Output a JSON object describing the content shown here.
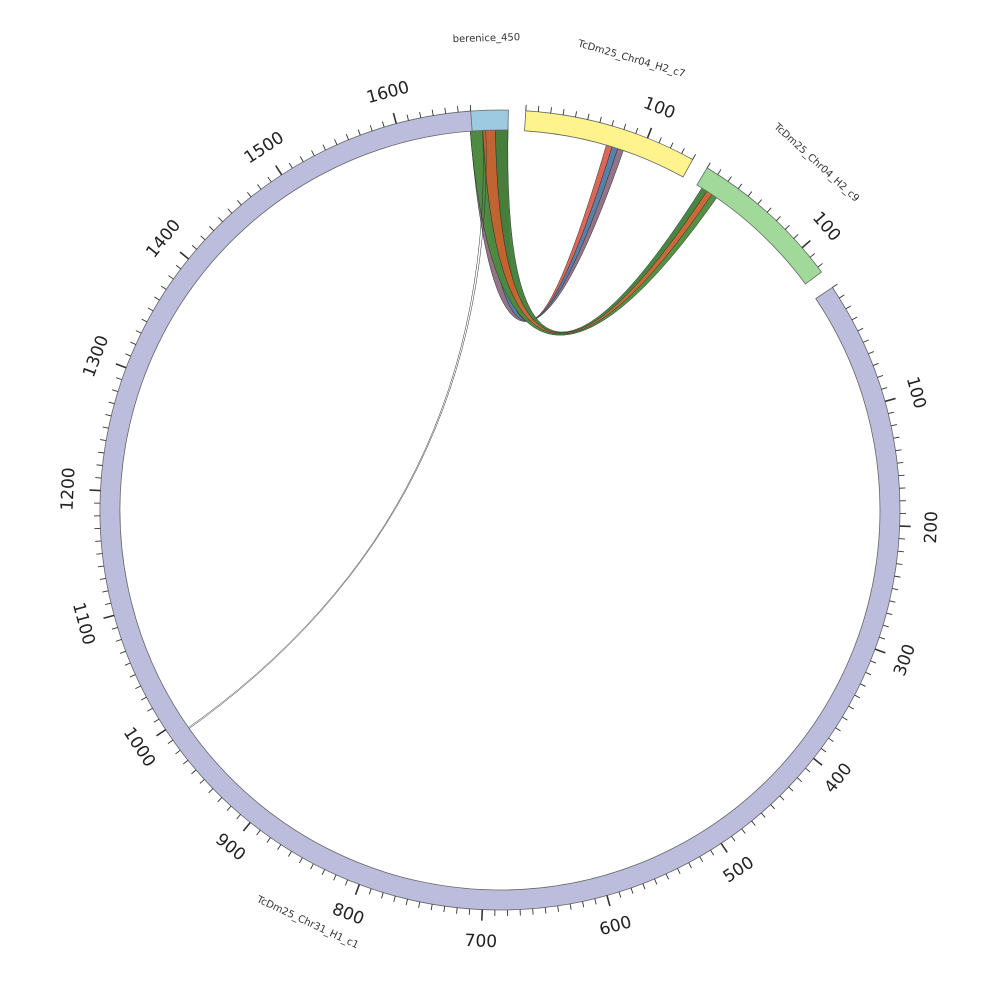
{
  "chart_data": {
    "type": "chord",
    "segments": [
      {
        "name": "berenice_450",
        "color": "#9ecae1",
        "start_deg": -4.5,
        "end_deg": 1.2,
        "length": 12,
        "show_ticks": false
      },
      {
        "name": "TcDm25_Chr04_H2_c7",
        "color": "#fff38d",
        "start_deg": 3.7,
        "end_deg": 28.8,
        "length": 140,
        "minor_every": 10,
        "major_every": 100,
        "show_ticks": true
      },
      {
        "name": "TcDm25_Chr04_H2_c9",
        "color": "#a1d99b",
        "start_deg": 31.2,
        "end_deg": 53.5,
        "length": 125,
        "minor_every": 10,
        "major_every": 100,
        "show_ticks": true
      },
      {
        "name": "TcDm25_Chr31_H1_c1",
        "color": "#bcbddc",
        "start_deg": 56.2,
        "end_deg": 355.8,
        "length": 1660,
        "minor_every": 10,
        "major_every": 100,
        "show_ticks": true
      }
    ],
    "tick_labels": [
      {
        "segment": "TcDm25_Chr04_H2_c7",
        "label": "100"
      },
      {
        "segment": "TcDm25_Chr04_H2_c9",
        "label": "100"
      },
      {
        "segment": "TcDm25_Chr31_H1_c1",
        "label": "100"
      },
      {
        "segment": "TcDm25_Chr31_H1_c1",
        "label": "200"
      },
      {
        "segment": "TcDm25_Chr31_H1_c1",
        "label": "300"
      },
      {
        "segment": "TcDm25_Chr31_H1_c1",
        "label": "400"
      },
      {
        "segment": "TcDm25_Chr31_H1_c1",
        "label": "500"
      },
      {
        "segment": "TcDm25_Chr31_H1_c1",
        "label": "600"
      },
      {
        "segment": "TcDm25_Chr31_H1_c1",
        "label": "700"
      },
      {
        "segment": "TcDm25_Chr31_H1_c1",
        "label": "800"
      },
      {
        "segment": "TcDm25_Chr31_H1_c1",
        "label": "900"
      },
      {
        "segment": "TcDm25_Chr31_H1_c1",
        "label": "1000"
      },
      {
        "segment": "TcDm25_Chr31_H1_c1",
        "label": "1100"
      },
      {
        "segment": "TcDm25_Chr31_H1_c1",
        "label": "1200"
      },
      {
        "segment": "TcDm25_Chr31_H1_c1",
        "label": "1300"
      },
      {
        "segment": "TcDm25_Chr31_H1_c1",
        "label": "1400"
      },
      {
        "segment": "TcDm25_Chr31_H1_c1",
        "label": "1500"
      },
      {
        "segment": "TcDm25_Chr31_H1_c1",
        "label": "1600"
      }
    ],
    "links": [
      {
        "from": "berenice_450",
        "from_range": [
          0,
          12
        ],
        "to": "TcDm25_Chr04_H2_c7",
        "to_range": [
          70,
          85
        ],
        "colors": [
          "#8c6d7f",
          "#4e79a7",
          "#d95f4e"
        ]
      },
      {
        "from": "berenice_450",
        "from_range": [
          0,
          12
        ],
        "to": "TcDm25_Chr04_H2_c9",
        "to_range": [
          5,
          20
        ],
        "colors": [
          "#4b8b3b",
          "#c7622b",
          "#3f7f3a"
        ]
      },
      {
        "from": "berenice_450",
        "from_range": [
          4,
          5
        ],
        "to": "TcDm25_Chr31_H1_c1",
        "to_range": [
          990,
          991
        ],
        "colors": [
          "#333333"
        ]
      }
    ]
  }
}
